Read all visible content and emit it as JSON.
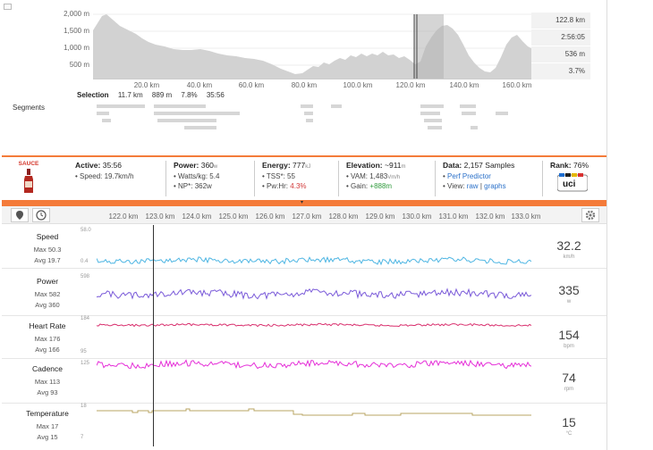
{
  "elevation": {
    "y_ticks": [
      "2,000 m",
      "1,500 m",
      "1,000 m",
      "500 m"
    ],
    "x_ticks": [
      "20.0 km",
      "40.0 km",
      "60.0 km",
      "80.0 km",
      "100.0 km",
      "120.0 km",
      "140.0 km",
      "160.0 km"
    ],
    "side_stats": [
      "122.8 km",
      "2:56:05",
      "536 m",
      "3.7%"
    ]
  },
  "selection": {
    "label": "Selection",
    "distance": "11.7 km",
    "elevation": "889 m",
    "grade": "7.8%",
    "time": "35:56"
  },
  "segments_label": "Segments",
  "stats": {
    "logo": "SAUCE",
    "active_label": "Active:",
    "active": "35:56",
    "speed_line": "Speed: 19.7km/h",
    "power_label": "Power:",
    "power": "360",
    "power_unit": "w",
    "watts_kg": "Watts/kg: 5.4",
    "np": "NP*: 362w",
    "energy_label": "Energy:",
    "energy": "777",
    "energy_unit": "kJ",
    "tss": "TSS*: 55",
    "pwhr_label": "Pw:Hr:",
    "pwhr": "4.3%",
    "elevation_label": "Elevation:",
    "elevation": "~911",
    "elevation_unit": "m",
    "vam": "VAM: 1,483",
    "vam_unit": "Vm/h",
    "gain_label": "Gain:",
    "gain": "+888m",
    "data_label": "Data:",
    "data": "2,157 Samples",
    "perf": "Perf Predictor",
    "view_label": "View:",
    "view_raw": "raw",
    "view_sep": "|",
    "view_graphs": "graphs",
    "rank_label": "Rank:",
    "rank": "76%"
  },
  "detail_x_ticks": [
    "122.0 km",
    "123.0 km",
    "124.0 km",
    "125.0 km",
    "126.0 km",
    "127.0 km",
    "128.0 km",
    "129.0 km",
    "130.0 km",
    "131.0 km",
    "132.0 km",
    "133.0 km"
  ],
  "streams": [
    {
      "name": "Speed",
      "max": "Max 50.3",
      "avg": "Avg 19.7",
      "value": "32.2",
      "unit": "km/h",
      "top": "58.0",
      "bottom": "0.4",
      "color": "#4fb6e3"
    },
    {
      "name": "Power",
      "max": "Max 582",
      "avg": "Avg 360",
      "value": "335",
      "unit": "w",
      "top": "598",
      "bottom": "",
      "color": "#7a5ad9"
    },
    {
      "name": "Heart Rate",
      "max": "Max 176",
      "avg": "Avg 166",
      "value": "154",
      "unit": "bpm",
      "top": "184",
      "bottom": "95",
      "color": "#d9306e"
    },
    {
      "name": "Cadence",
      "max": "Max 113",
      "avg": "Avg 93",
      "value": "74",
      "unit": "rpm",
      "top": "125",
      "bottom": "",
      "color": "#e52fd8"
    },
    {
      "name": "Temperature",
      "max": "Max 17",
      "avg": "Avg 15",
      "value": "15",
      "unit": "°C",
      "top": "18",
      "bottom": "7",
      "color": "#b8a463"
    }
  ]
}
